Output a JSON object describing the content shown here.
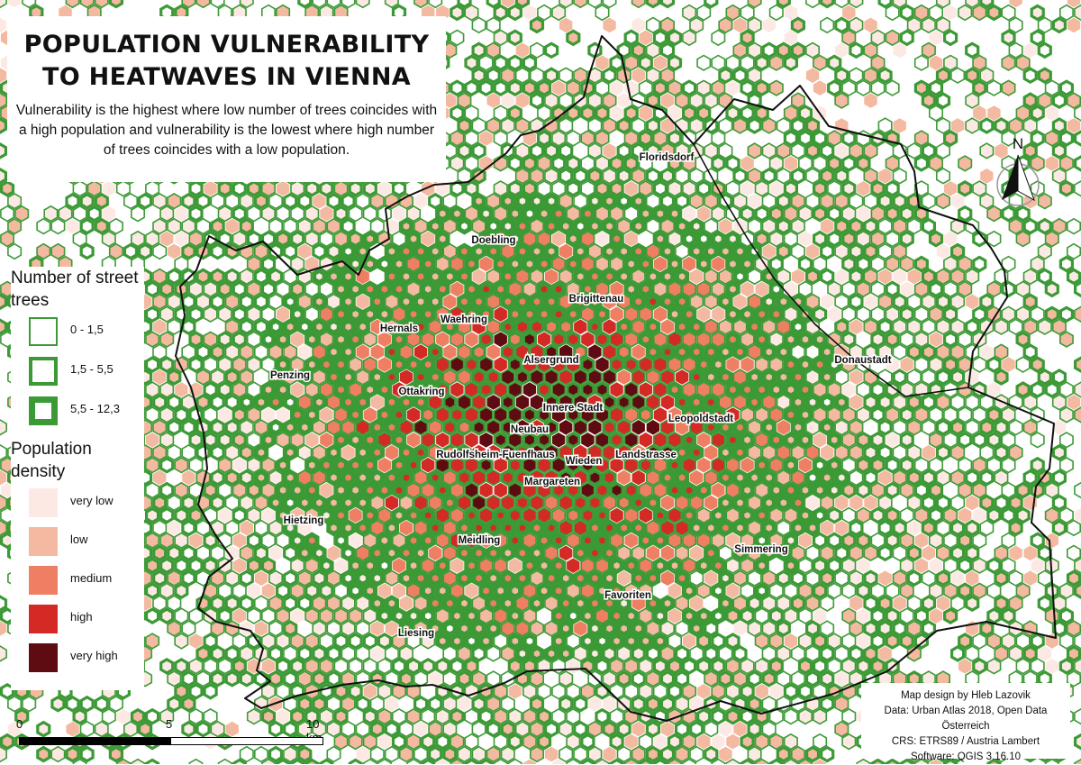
{
  "title": "POPULATION VULNERABILITY TO HEATWAVES IN VIENNA",
  "subtitle": "Vulnerability is the highest where low number of trees coincides with a high population and vulnerability is the lowest where high number of trees coincides with a low population.",
  "legend": {
    "trees_title": "Number of street trees",
    "trees_items": [
      {
        "label": "0 - 1,5",
        "stroke_level": 1
      },
      {
        "label": "1,5 - 5,5",
        "stroke_level": 2
      },
      {
        "label": "5,5 - 12,3",
        "stroke_level": 3
      }
    ],
    "pop_title": "Population density",
    "pop_items": [
      {
        "label": "very low",
        "color": "#fde9e4"
      },
      {
        "label": "low",
        "color": "#f4b9a1"
      },
      {
        "label": "medium",
        "color": "#ef7f62"
      },
      {
        "label": "high",
        "color": "#d42a26"
      },
      {
        "label": "very high",
        "color": "#5e0b11"
      }
    ]
  },
  "districts": [
    {
      "name": "Floridsdorf"
    },
    {
      "name": "Doebling"
    },
    {
      "name": "Brigittenau"
    },
    {
      "name": "Waehring"
    },
    {
      "name": "Hernals"
    },
    {
      "name": "Alsergrund"
    },
    {
      "name": "Donaustadt"
    },
    {
      "name": "Penzing"
    },
    {
      "name": "Ottakring"
    },
    {
      "name": "Innere Stadt"
    },
    {
      "name": "Leopoldstadt"
    },
    {
      "name": "Neubau"
    },
    {
      "name": "Rudolfsheim-Fuenfhaus"
    },
    {
      "name": "Wieden"
    },
    {
      "name": "Landstrasse"
    },
    {
      "name": "Margareten"
    },
    {
      "name": "Hietzing"
    },
    {
      "name": "Meidling"
    },
    {
      "name": "Simmering"
    },
    {
      "name": "Favoriten"
    },
    {
      "name": "Liesing"
    }
  ],
  "north_label": "N",
  "scale_bar": {
    "labels": [
      "0",
      "5",
      "10 km"
    ]
  },
  "credits": [
    "Map design by Hleb Lazovik",
    "Data: Urban Atlas 2018, Open Data Österreich",
    "CRS: ETRS89 / Austria Lambert",
    "Software: QGIS 3.16.10"
  ],
  "colors": {
    "tree_outline": "#3c9a36",
    "boundary": "#111111"
  }
}
